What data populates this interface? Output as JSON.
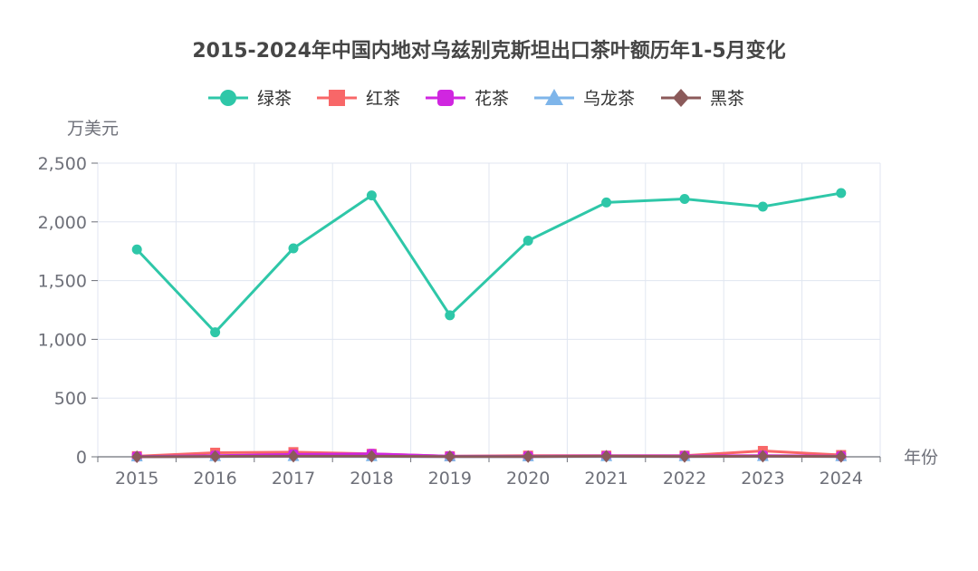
{
  "chart_data": {
    "type": "line",
    "title": "2015-2024年中国内地对乌兹别克斯坦出口茶叶额历年1-5月变化",
    "xlabel": "年份",
    "ylabel": "万美元",
    "categories": [
      "2015",
      "2016",
      "2017",
      "2018",
      "2019",
      "2020",
      "2021",
      "2022",
      "2023",
      "2024"
    ],
    "ylim": [
      0,
      2500
    ],
    "yticks": [
      0,
      500,
      1000,
      1500,
      2000,
      2500
    ],
    "ytick_labels": [
      "0",
      "500",
      "1,000",
      "1,500",
      "2,000",
      "2,500"
    ],
    "grid": true,
    "legend_position": "top-center",
    "series": [
      {
        "name": "绿茶",
        "color": "#2ec7a8",
        "marker": "circle",
        "values": [
          1765,
          1060,
          1775,
          2225,
          1205,
          1840,
          2165,
          2195,
          2130,
          2245
        ]
      },
      {
        "name": "红茶",
        "color": "#f86768",
        "marker": "square",
        "values": [
          5,
          35,
          40,
          25,
          5,
          10,
          10,
          10,
          50,
          15
        ]
      },
      {
        "name": "花茶",
        "color": "#d026e0",
        "marker": "rounded-square",
        "values": [
          2,
          10,
          20,
          25,
          5,
          5,
          8,
          8,
          10,
          5
        ]
      },
      {
        "name": "乌龙茶",
        "color": "#7eb5ea",
        "marker": "triangle",
        "values": [
          0,
          2,
          3,
          2,
          1,
          1,
          2,
          2,
          3,
          2
        ]
      },
      {
        "name": "黑茶",
        "color": "#8b5a5a",
        "marker": "diamond",
        "values": [
          0,
          3,
          5,
          5,
          2,
          2,
          5,
          3,
          5,
          3
        ]
      }
    ]
  }
}
